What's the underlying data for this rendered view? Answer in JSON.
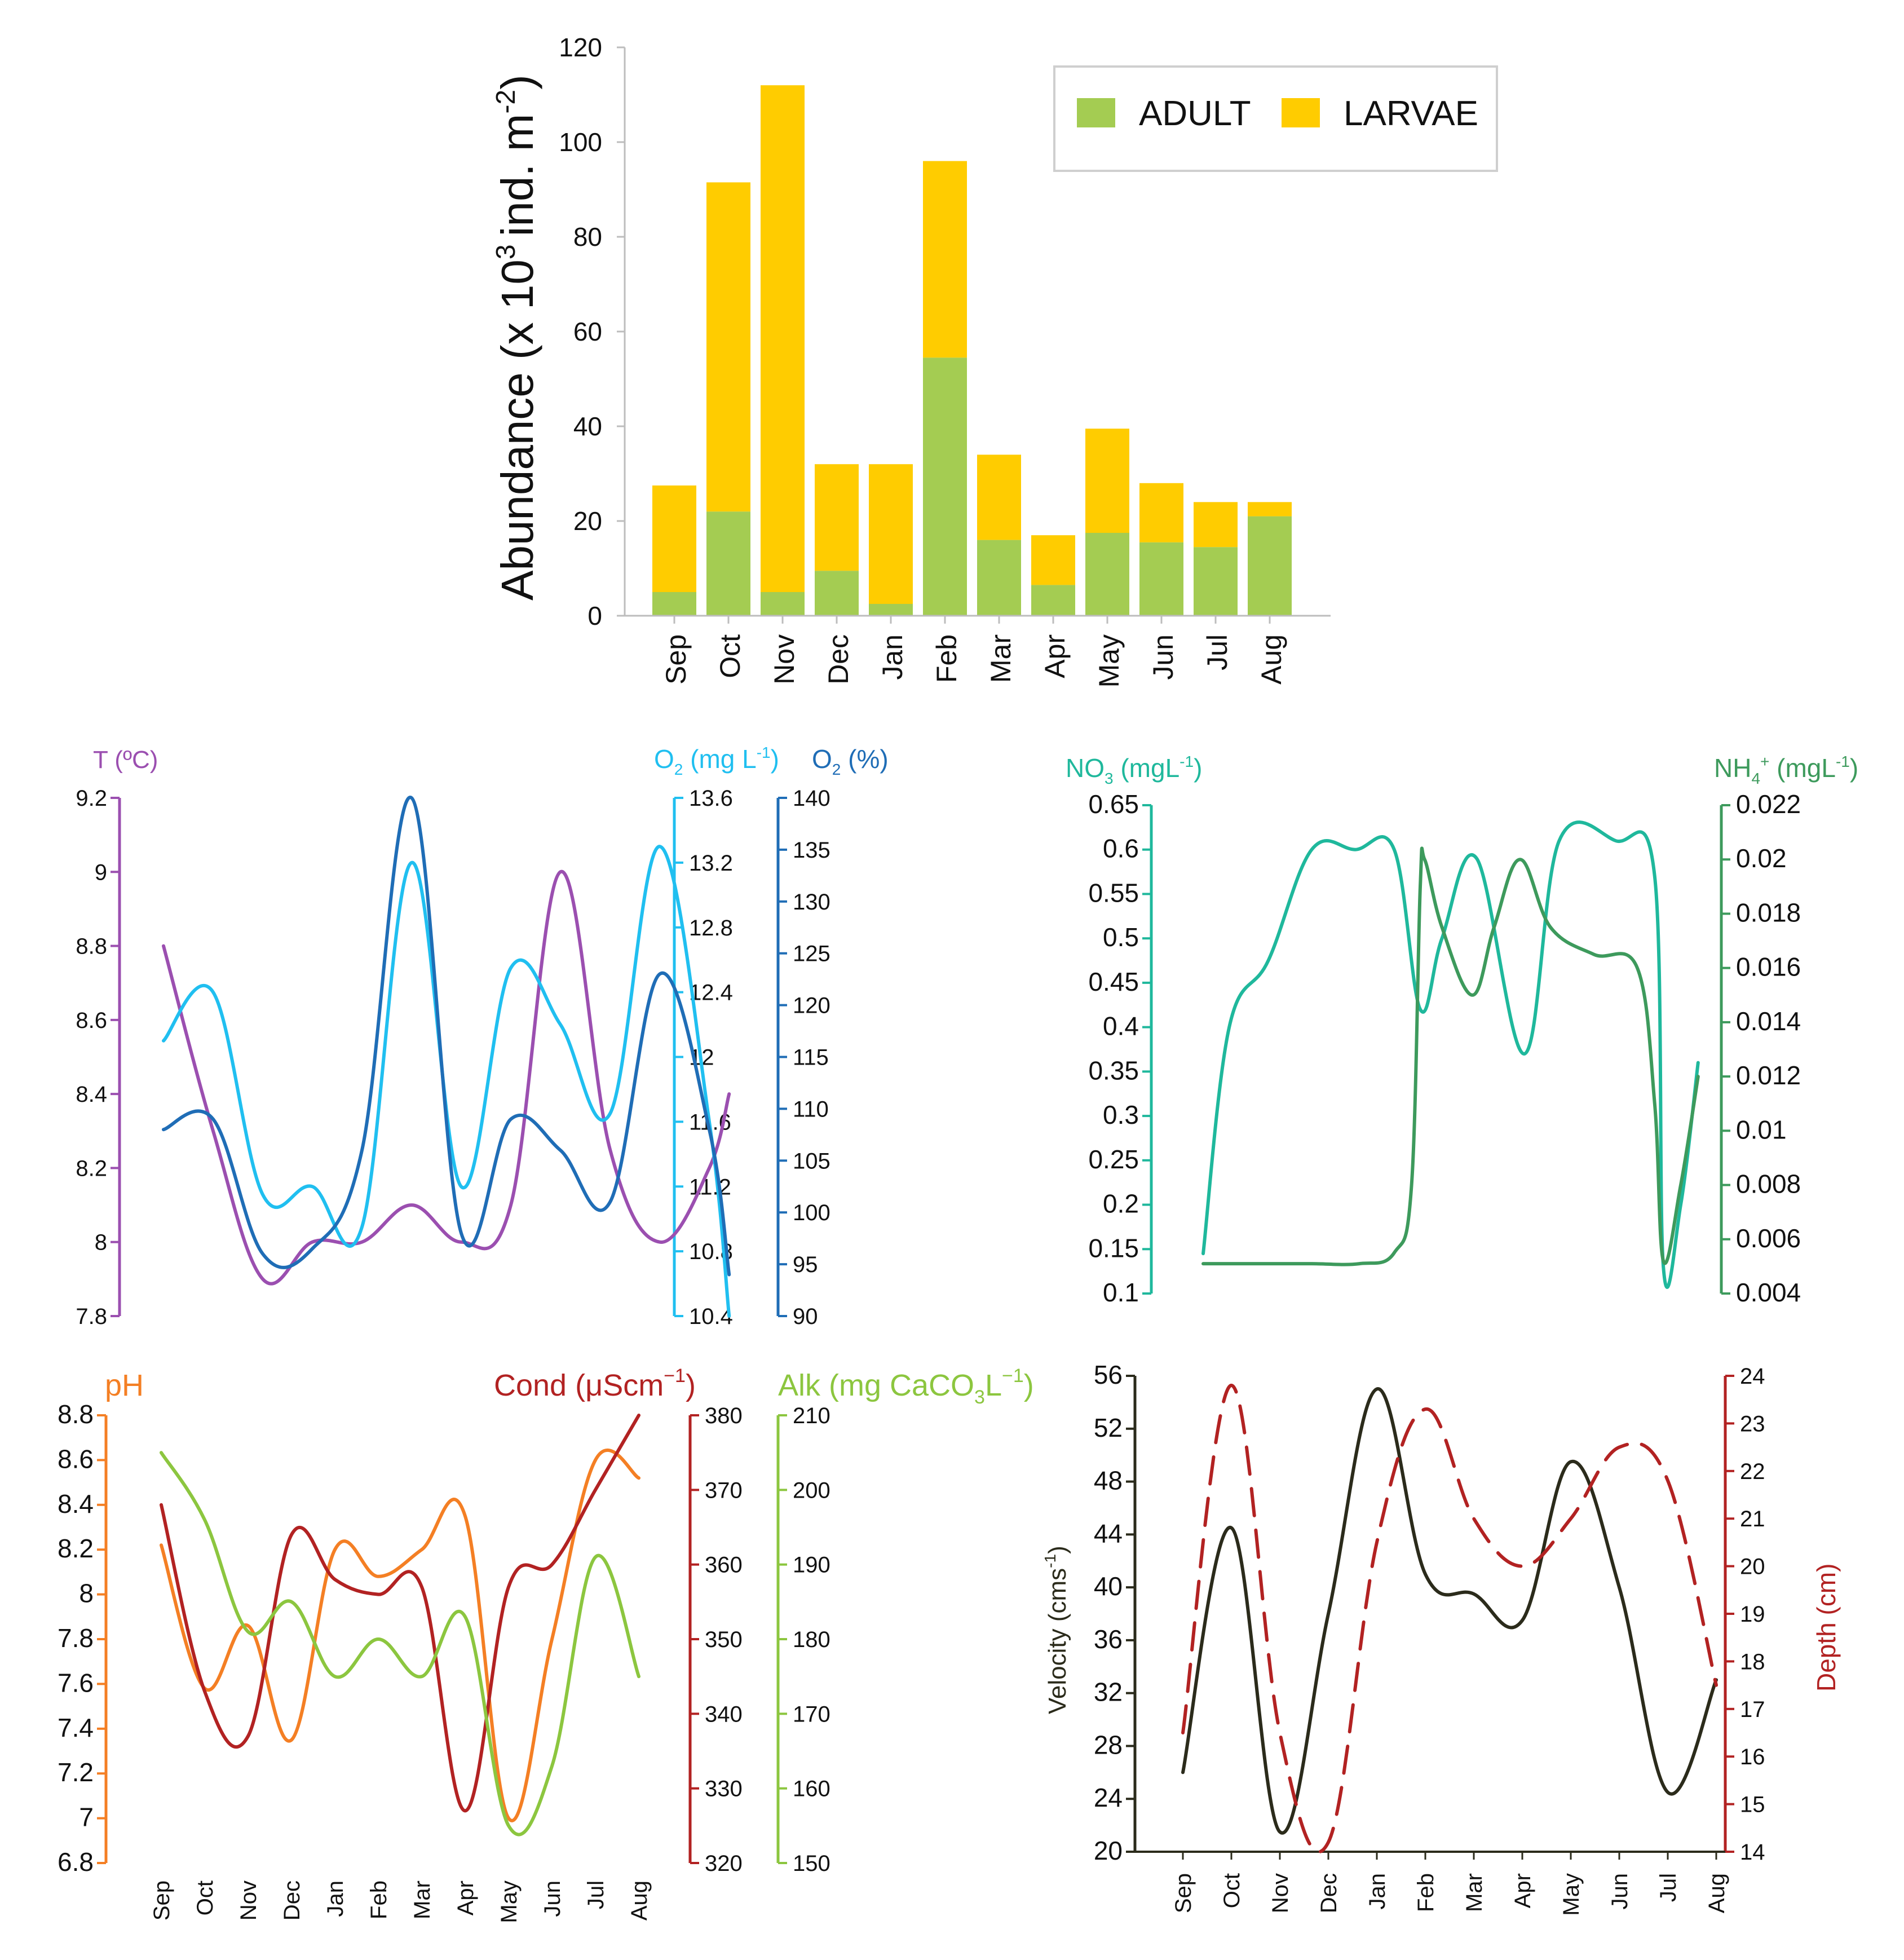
{
  "months": [
    "Sep",
    "Oct",
    "Nov",
    "Dec",
    "Jan",
    "Feb",
    "Mar",
    "Apr",
    "May",
    "Jun",
    "Jul",
    "Aug"
  ],
  "chart_data": [
    {
      "id": "abundance",
      "type": "bar",
      "stacked": true,
      "categories": [
        "Sep",
        "Oct",
        "Nov",
        "Dec",
        "Jan",
        "Feb",
        "Mar",
        "Apr",
        "May",
        "Jun",
        "Jul",
        "Aug"
      ],
      "series": [
        {
          "name": "ADULT",
          "color": "#a4cc52",
          "values": [
            5,
            22,
            5,
            9.5,
            2.5,
            54.5,
            16,
            6.5,
            17.5,
            15.5,
            14.5,
            21
          ]
        },
        {
          "name": "LARVAE",
          "color": "#ffcc00",
          "values": [
            22.5,
            69.5,
            107,
            22.5,
            29.5,
            41.5,
            18,
            10.5,
            22,
            12.5,
            9.5,
            3
          ]
        }
      ],
      "ylabel_main": "Abundance (x 10",
      "ylabel_sup": "3",
      "ylabel_mid": "ind. m",
      "ylabel_sup2": "-2",
      "ylabel_end": ")",
      "ylim": [
        0,
        120
      ],
      "yticks": [
        "0",
        "20",
        "40",
        "60",
        "80",
        "100",
        "120"
      ],
      "legend_position": "top-right"
    },
    {
      "id": "temperature-oxygen",
      "type": "line",
      "labels": {
        "t": "T (ºC)",
        "o2mg_main": "O",
        "o2mg_sub": "2",
        "o2mg_unit": " (mg L",
        "o2mg_sup": "-1",
        "o2mg_close": ")",
        "o2pct_main": "O",
        "o2pct_sub": "2",
        "o2pct_unit": " (%)"
      },
      "axes": {
        "t": {
          "range": [
            7.8,
            9.2
          ],
          "ticks": [
            "7.8",
            "8",
            "8.2",
            "8.4",
            "8.6",
            "8.8",
            "9",
            "9.2"
          ],
          "color": "#9b4fb0"
        },
        "o2mg": {
          "range": [
            10.4,
            13.6
          ],
          "ticks": [
            "10.4",
            "10.8",
            "11.2",
            "11.6",
            "12",
            "12.4",
            "12.8",
            "13.2",
            "13.6"
          ],
          "color": "#20bff0"
        },
        "o2pct": {
          "range": [
            90,
            140
          ],
          "ticks": [
            "90",
            "95",
            "100",
            "105",
            "110",
            "115",
            "120",
            "125",
            "130",
            "135",
            "140"
          ],
          "color": "#1f6db6"
        }
      },
      "series": [
        {
          "name": "T (ºC)",
          "axis": "t",
          "color": "#9b4fb0",
          "x": [
            0,
            1,
            2,
            3,
            4,
            5,
            6,
            7,
            8,
            9,
            10,
            11,
            11.4
          ],
          "values": [
            8.8,
            8.3,
            7.9,
            8.0,
            8.0,
            8.1,
            8.0,
            8.1,
            9.0,
            8.25,
            8.0,
            8.2,
            8.4
          ]
        },
        {
          "name": "O2 (mg L-1)",
          "axis": "o2mg",
          "color": "#20bff0",
          "x": [
            0,
            1,
            2,
            3,
            4,
            5,
            6,
            7,
            8,
            9,
            10,
            11,
            11.4
          ],
          "values": [
            12.1,
            12.4,
            11.15,
            11.2,
            10.95,
            13.2,
            11.2,
            12.55,
            12.2,
            11.65,
            13.3,
            11.6,
            10.4
          ]
        },
        {
          "name": "O2 (%)",
          "axis": "o2pct",
          "color": "#1f6db6",
          "x": [
            0,
            1,
            2,
            3,
            4,
            5,
            6,
            7,
            8,
            9,
            10,
            11,
            11.4
          ],
          "values": [
            108,
            109,
            96,
            96.5,
            106,
            140,
            98,
            109,
            106,
            101,
            123,
            108,
            94
          ]
        }
      ]
    },
    {
      "id": "nutrients",
      "type": "line",
      "labels": {
        "no3_main": "NO",
        "no3_sub": "3",
        "no3_unit": " (mgL",
        "no3_sup": "-1",
        "no3_close": ")",
        "nh4_main": "NH",
        "nh4_sub": "4",
        "nh4_sup": "+",
        "nh4_unit": " (mgL",
        "nh4_sup2": "-1",
        "nh4_close": ")"
      },
      "axes": {
        "no3": {
          "range": [
            0.1,
            0.65
          ],
          "ticks": [
            "0.1",
            "0.15",
            "0.2",
            "0.25",
            "0.3",
            "0.35",
            "0.4",
            "0.45",
            "0.5",
            "0.55",
            "0.6",
            "0.65"
          ],
          "color": "#1fb89c"
        },
        "nh4": {
          "range": [
            0.004,
            0.022
          ],
          "ticks": [
            "0.004",
            "0.006",
            "0.008",
            "0.01",
            "0.012",
            "0.014",
            "0.016",
            "0.018",
            "0.02",
            "0.022"
          ],
          "color": "#3d9a5c"
        }
      },
      "series": [
        {
          "name": "NO3 (mgL-1)",
          "axis": "no3",
          "color": "#1fb89c",
          "x": [
            0,
            0.6,
            1.5,
            2.5,
            3.5,
            4.4,
            5.0,
            5.5,
            6.3,
            7.4,
            8.2,
            9.5,
            10.4,
            10.6,
            11.0,
            11.4
          ],
          "values": [
            0.145,
            0.4,
            0.475,
            0.6,
            0.6,
            0.6,
            0.42,
            0.5,
            0.59,
            0.37,
            0.61,
            0.61,
            0.57,
            0.13,
            0.2,
            0.36
          ]
        },
        {
          "name": "NH4+ (mgL-1)",
          "axis": "nh4",
          "color": "#3d9a5c",
          "x": [
            0,
            1.5,
            2.5,
            3.6,
            4.4,
            4.8,
            5.0,
            5.1,
            5.5,
            6.2,
            6.7,
            7.3,
            8.0,
            9.0,
            10.0,
            10.4,
            10.6,
            11.0,
            11.4
          ],
          "values": [
            0.0051,
            0.0051,
            0.0051,
            0.0051,
            0.0055,
            0.008,
            0.019,
            0.02,
            0.0175,
            0.015,
            0.0175,
            0.02,
            0.0175,
            0.0165,
            0.016,
            0.011,
            0.0052,
            0.008,
            0.012
          ]
        }
      ]
    },
    {
      "id": "ph-cond-alk",
      "type": "line",
      "labels": {
        "ph": "pH",
        "cond_main": "Cond (μScm",
        "cond_sup": "−1",
        "cond_close": ")",
        "alk_main": "Alk (mg CaCO",
        "alk_sub": "3",
        "alk_unit": "L",
        "alk_sup": "−1",
        "alk_close": ")"
      },
      "axes": {
        "ph": {
          "range": [
            6.8,
            8.8
          ],
          "ticks": [
            "6.8",
            "7",
            "7.2",
            "7.4",
            "7.6",
            "7.8",
            "8",
            "8.2",
            "8.4",
            "8.6",
            "8.8"
          ],
          "color": "#f47f24"
        },
        "cond": {
          "range": [
            320,
            380
          ],
          "ticks": [
            "320",
            "330",
            "340",
            "350",
            "360",
            "370",
            "380"
          ],
          "color": "#b22222"
        },
        "alk": {
          "range": [
            150,
            210
          ],
          "ticks": [
            "150",
            "160",
            "170",
            "180",
            "190",
            "200",
            "210"
          ],
          "color": "#8cc63f"
        }
      },
      "series": [
        {
          "name": "pH",
          "axis": "ph",
          "color": "#f47f24",
          "x": [
            0,
            1,
            2,
            3,
            4,
            5,
            6,
            7,
            8,
            9,
            10,
            11
          ],
          "values": [
            8.22,
            7.58,
            7.86,
            7.35,
            8.2,
            8.08,
            8.2,
            8.35,
            7.0,
            7.8,
            8.6,
            8.52
          ]
        },
        {
          "name": "Cond (μScm−1)",
          "axis": "cond",
          "color": "#b22222",
          "x": [
            0,
            1,
            2,
            3,
            4,
            5,
            6,
            7,
            8,
            9,
            10,
            11
          ],
          "values": [
            368,
            343,
            337,
            364,
            358,
            356,
            357,
            327,
            357,
            360,
            370,
            380
          ]
        },
        {
          "name": "Alk (mg CaCO3L−1)",
          "axis": "alk",
          "color": "#8cc63f",
          "x": [
            0,
            1,
            2,
            3,
            4,
            5,
            6,
            7,
            8,
            9,
            10,
            11
          ],
          "values": [
            205,
            196,
            181,
            185,
            175,
            180,
            175,
            183,
            155,
            163,
            191,
            175
          ]
        }
      ]
    },
    {
      "id": "velocity-depth",
      "type": "line",
      "labels": {
        "velocity_main": "Velocity (cms",
        "velocity_sup": "-1",
        "velocity_close": ")",
        "depth": "Depth (cm)"
      },
      "axes": {
        "velocity": {
          "range": [
            20,
            56
          ],
          "ticks": [
            "20",
            "24",
            "28",
            "32",
            "36",
            "40",
            "44",
            "48",
            "52",
            "56"
          ],
          "color": "#2b2b1b"
        },
        "depth": {
          "range": [
            14,
            24
          ],
          "ticks": [
            "14",
            "15",
            "16",
            "17",
            "18",
            "19",
            "20",
            "21",
            "22",
            "23",
            "24"
          ],
          "color": "#b22222"
        }
      },
      "series": [
        {
          "name": "Velocity (cms-1)",
          "axis": "velocity",
          "color": "#2b2b1b",
          "dashed": false,
          "x": [
            0,
            1,
            2,
            3,
            4,
            5,
            6,
            7,
            8,
            9,
            10,
            11
          ],
          "values": [
            26,
            44.5,
            21.5,
            38,
            55,
            41,
            39.5,
            37.5,
            49.5,
            40,
            24.5,
            33
          ]
        },
        {
          "name": "Depth (cm)",
          "axis": "depth",
          "color": "#b22222",
          "dashed": true,
          "x": [
            0,
            1,
            2,
            3,
            4,
            5,
            6,
            7,
            8,
            9,
            10,
            11
          ],
          "values": [
            16.5,
            23.8,
            16.5,
            14.2,
            20.5,
            23.3,
            21,
            20,
            21,
            22.5,
            21.8,
            17.5
          ]
        }
      ]
    }
  ]
}
